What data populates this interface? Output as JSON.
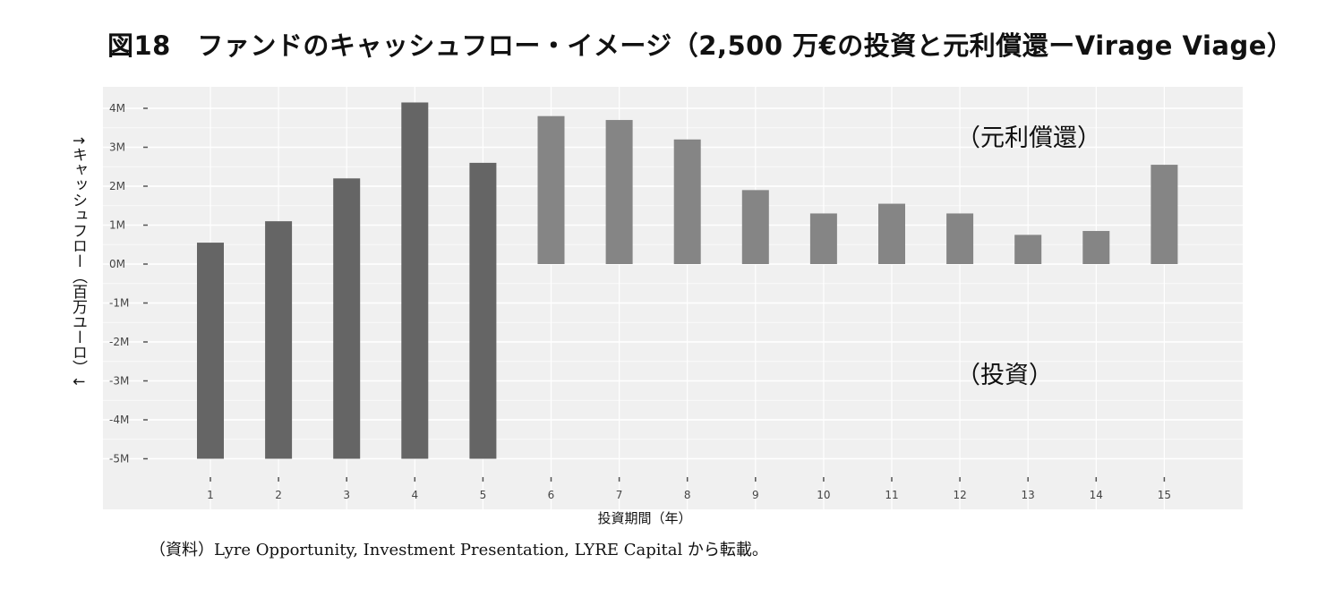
{
  "title": "図18　ファンドのキャッシュフロー・イメージ（2,500 万€の投資と元利償還ーVirage Viage）",
  "source": "（資料）Lyre Opportunity, Investment Presentation, LYRE Capital から転載。",
  "colors": {
    "panel_bg": "#f0f0f0",
    "gridline": "#ffffff",
    "investment_bar": "#656565",
    "repayment_bar": "#858585"
  },
  "chart_data": {
    "type": "bar",
    "title": "",
    "xlabel": "投資期間（年）",
    "ylabel": "↑キャッシュフロー（百万ユーロ）↓",
    "categories": [
      "1",
      "2",
      "3",
      "4",
      "5",
      "6",
      "7",
      "8",
      "9",
      "10",
      "11",
      "12",
      "13",
      "14",
      "15"
    ],
    "ylim": [
      -5.4,
      4.3
    ],
    "y_ticks": [
      4,
      3,
      2,
      1,
      0,
      -1,
      -2,
      -3,
      -4,
      -5
    ],
    "y_tick_labels": [
      "4M",
      "3M",
      "2M",
      "1M",
      "0M",
      "-1M",
      "-2M",
      "-3M",
      "-4M",
      "-5M"
    ],
    "series": [
      {
        "name": "（投資）",
        "values": [
          -5,
          -5,
          -5,
          -5,
          -5,
          0,
          0,
          0,
          0,
          0,
          0,
          0,
          0,
          0,
          0
        ]
      },
      {
        "name": "（元利償還）",
        "values": [
          0.55,
          1.1,
          2.2,
          4.15,
          2.6,
          3.8,
          3.7,
          3.2,
          1.9,
          1.3,
          1.55,
          1.3,
          0.75,
          0.85,
          2.55
        ]
      }
    ],
    "annotations": [
      "（元利償還）",
      "（投資）"
    ],
    "grid": true,
    "legend": "none"
  }
}
